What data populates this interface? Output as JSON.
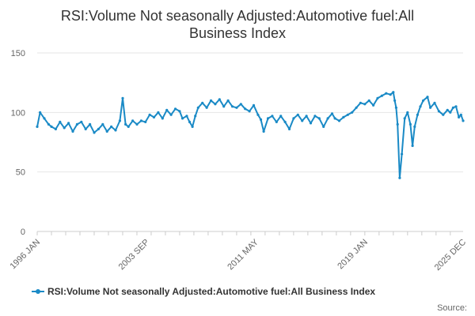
{
  "chart_data": {
    "type": "line",
    "title_lines": [
      "RSI:Volume Not seasonally Adjusted:Automotive fuel:All",
      "Business Index"
    ],
    "xlabel": "",
    "ylabel": "",
    "ylim": [
      0,
      150
    ],
    "y_ticks": [
      0,
      50,
      100,
      150
    ],
    "x_range": [
      1996.0,
      2025.9
    ],
    "x_ticks": [
      {
        "label": "1996 JAN",
        "x": 1996.0
      },
      {
        "label": "2003 SEP",
        "x": 2003.67
      },
      {
        "label": "2011 MAY",
        "x": 2011.33
      },
      {
        "label": "2019 JAN",
        "x": 2019.0
      },
      {
        "label": "2025 DEC",
        "x": 2025.9
      }
    ],
    "grid": true,
    "legend_position": "bottom",
    "series": [
      {
        "name": "RSI:Volume Not seasonally Adjusted:Automotive fuel:All Business Index",
        "color": "#1a8ac6",
        "points": [
          [
            1996.0,
            88
          ],
          [
            1996.2,
            100
          ],
          [
            1996.5,
            95
          ],
          [
            1996.8,
            90
          ],
          [
            1997.0,
            88
          ],
          [
            1997.3,
            86
          ],
          [
            1997.6,
            92
          ],
          [
            1997.9,
            87
          ],
          [
            1998.2,
            91
          ],
          [
            1998.5,
            84
          ],
          [
            1998.8,
            90
          ],
          [
            1999.1,
            92
          ],
          [
            1999.4,
            86
          ],
          [
            1999.7,
            90
          ],
          [
            2000.0,
            83
          ],
          [
            2000.3,
            86
          ],
          [
            2000.6,
            90
          ],
          [
            2000.9,
            84
          ],
          [
            2001.2,
            88
          ],
          [
            2001.5,
            85
          ],
          [
            2001.8,
            93
          ],
          [
            2002.0,
            112
          ],
          [
            2002.2,
            90
          ],
          [
            2002.4,
            88
          ],
          [
            2002.7,
            93
          ],
          [
            2003.0,
            90
          ],
          [
            2003.3,
            93
          ],
          [
            2003.6,
            92
          ],
          [
            2003.9,
            98
          ],
          [
            2004.2,
            96
          ],
          [
            2004.5,
            100
          ],
          [
            2004.8,
            95
          ],
          [
            2005.1,
            102
          ],
          [
            2005.4,
            98
          ],
          [
            2005.7,
            103
          ],
          [
            2006.0,
            101
          ],
          [
            2006.2,
            95
          ],
          [
            2006.5,
            97
          ],
          [
            2006.7,
            92
          ],
          [
            2006.9,
            88
          ],
          [
            2007.1,
            97
          ],
          [
            2007.3,
            104
          ],
          [
            2007.6,
            108
          ],
          [
            2007.9,
            104
          ],
          [
            2008.2,
            110
          ],
          [
            2008.5,
            107
          ],
          [
            2008.8,
            111
          ],
          [
            2009.1,
            105
          ],
          [
            2009.4,
            110
          ],
          [
            2009.7,
            105
          ],
          [
            2010.0,
            104
          ],
          [
            2010.3,
            107
          ],
          [
            2010.6,
            103
          ],
          [
            2010.9,
            101
          ],
          [
            2011.2,
            106
          ],
          [
            2011.5,
            98
          ],
          [
            2011.7,
            94
          ],
          [
            2011.9,
            84
          ],
          [
            2012.2,
            95
          ],
          [
            2012.5,
            97
          ],
          [
            2012.8,
            92
          ],
          [
            2013.1,
            97
          ],
          [
            2013.4,
            92
          ],
          [
            2013.7,
            86
          ],
          [
            2014.0,
            95
          ],
          [
            2014.3,
            98
          ],
          [
            2014.6,
            93
          ],
          [
            2014.9,
            97
          ],
          [
            2015.2,
            91
          ],
          [
            2015.5,
            97
          ],
          [
            2015.8,
            95
          ],
          [
            2016.1,
            88
          ],
          [
            2016.4,
            95
          ],
          [
            2016.7,
            99
          ],
          [
            2016.9,
            95
          ],
          [
            2017.2,
            93
          ],
          [
            2017.5,
            96
          ],
          [
            2017.8,
            98
          ],
          [
            2018.1,
            100
          ],
          [
            2018.4,
            104
          ],
          [
            2018.7,
            108
          ],
          [
            2019.0,
            107
          ],
          [
            2019.3,
            110
          ],
          [
            2019.6,
            106
          ],
          [
            2019.9,
            112
          ],
          [
            2020.2,
            114
          ],
          [
            2020.5,
            116
          ],
          [
            2020.8,
            115
          ],
          [
            2021.0,
            117
          ],
          [
            2021.1,
            110
          ],
          [
            2021.2,
            104
          ],
          [
            2021.3,
            90
          ],
          [
            2021.45,
            45
          ],
          [
            2021.6,
            65
          ],
          [
            2021.8,
            95
          ],
          [
            2022.0,
            100
          ],
          [
            2022.2,
            90
          ],
          [
            2022.35,
            72
          ],
          [
            2022.5,
            88
          ],
          [
            2022.7,
            98
          ],
          [
            2022.9,
            105
          ],
          [
            2023.1,
            110
          ],
          [
            2023.4,
            113
          ],
          [
            2023.6,
            104
          ],
          [
            2023.9,
            108
          ],
          [
            2024.2,
            101
          ],
          [
            2024.5,
            98
          ],
          [
            2024.8,
            102
          ],
          [
            2025.0,
            100
          ],
          [
            2025.2,
            104
          ],
          [
            2025.4,
            105
          ],
          [
            2025.6,
            96
          ],
          [
            2025.75,
            98
          ],
          [
            2025.9,
            93
          ]
        ]
      }
    ],
    "source_label": "Source:"
  }
}
